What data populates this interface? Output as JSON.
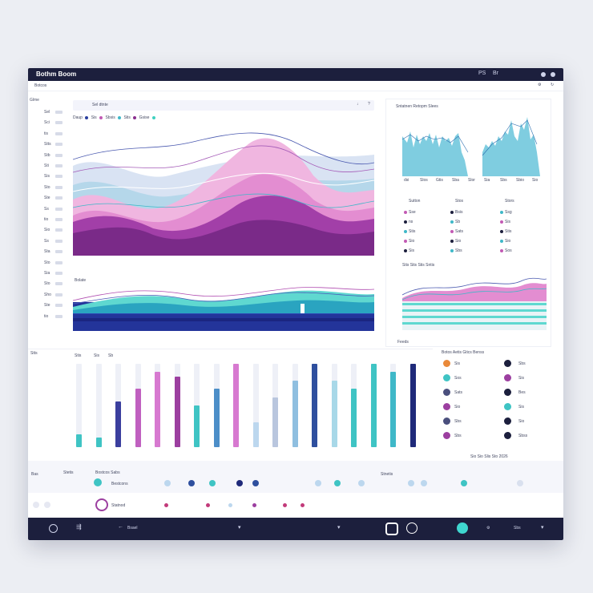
{
  "window": {
    "title": "Bothm Boom",
    "title_right": [
      "PS",
      "Br"
    ]
  },
  "toolbar": {
    "left_label": "Botcos"
  },
  "sidebar": {
    "heading": "Glme",
    "labels": [
      "Sel",
      "Sci",
      "tis",
      "Stts",
      "Stb",
      "Sti",
      "Sis",
      "Sto",
      "Ste",
      "Ss",
      "tio",
      "Sio",
      "Ss",
      "Sta",
      "Sto",
      "Sia",
      "Sto",
      "Sho",
      "Ste",
      "tio"
    ]
  },
  "main_chart": {
    "header": "Sel dtnte",
    "legend": [
      "Daup",
      "Sis",
      "Sbsis",
      "Stis",
      "Gsise"
    ],
    "legend_colors": [
      "#2a3f9e",
      "#c25ab4",
      "#3fb8c8",
      "#8a2e8e",
      "#3fd0c0"
    ]
  },
  "wave_chart": {
    "label": "Bolate"
  },
  "right_panel": {
    "title": "Sntatnen Retopm Slees",
    "histogram_ticks": [
      "dsi",
      "Slos",
      "Gtis",
      "Sba",
      "Slor",
      "Sia",
      "Sbs",
      "Sbio",
      "Sio"
    ],
    "table_headers": [
      "Sutton",
      "Stos",
      "Stors"
    ],
    "table_rows": [
      [
        "Sse",
        "Bsis",
        "Ssg"
      ],
      [
        "ns",
        "Sb",
        "Sis"
      ],
      [
        "Stis",
        "Sats",
        "Stis"
      ],
      [
        "Sio",
        "Sio",
        "Sio"
      ],
      [
        "Sis",
        "Sbs",
        "Sos"
      ]
    ],
    "wave_header": "Stis Stis Stis Sntis",
    "wave_footer": "Feeds"
  },
  "bars_panel": {
    "heading": "Stts",
    "top_labels": [
      "Stis",
      "Sis",
      "Sb"
    ],
    "bars": [
      {
        "name": "bar-1",
        "top": 0.1,
        "fill": 0.15,
        "color": "#3fc4c4"
      },
      {
        "name": "bar-2",
        "top": 0.2,
        "fill": 0.12,
        "color": "#3fc4c4"
      },
      {
        "name": "bar-3",
        "top": 0.4,
        "fill": 0.55,
        "color": "#3b3f9e"
      },
      {
        "name": "bar-4",
        "top": 0.05,
        "fill": 0.7,
        "color": "#c060c0"
      },
      {
        "name": "bar-5",
        "top": 0.05,
        "fill": 0.9,
        "color": "#d779d0"
      },
      {
        "name": "bar-6",
        "top": 0.0,
        "fill": 0.85,
        "color": "#9c3fa0"
      },
      {
        "name": "bar-7",
        "top": 0.0,
        "fill": 0.5,
        "color": "#3fc4c4"
      },
      {
        "name": "bar-8",
        "top": 0.0,
        "fill": 0.7,
        "color": "#4c8ec8"
      },
      {
        "name": "bar-9",
        "top": 0.0,
        "fill": 1.0,
        "color": "#d779d0"
      },
      {
        "name": "bar-10",
        "top": 0.1,
        "fill": 0.3,
        "color": "#bcd7ee"
      },
      {
        "name": "bar-11",
        "top": 0.0,
        "fill": 0.6,
        "color": "#b9c6de"
      },
      {
        "name": "bar-12",
        "top": 0.0,
        "fill": 0.8,
        "color": "#8fbfe0"
      },
      {
        "name": "bar-13",
        "top": 0.0,
        "fill": 1.0,
        "color": "#2e4f9e"
      },
      {
        "name": "bar-14",
        "top": 0.0,
        "fill": 0.8,
        "color": "#a8d8e8"
      },
      {
        "name": "bar-15",
        "top": 0.0,
        "fill": 0.7,
        "color": "#3fc4c4"
      },
      {
        "name": "bar-16",
        "top": 0.0,
        "fill": 1.0,
        "color": "#3fc4c4"
      },
      {
        "name": "bar-17",
        "top": 0.0,
        "fill": 0.9,
        "color": "#3fb8c8"
      },
      {
        "name": "bar-18",
        "top": 0.0,
        "fill": 1.0,
        "color": "#1f2a7a"
      }
    ]
  },
  "legend_panel": {
    "heading": "Botos Aetis Gtics Benss",
    "items": [
      {
        "color": "#e9893a",
        "label": "Sis",
        "right_color": "#1c1f3d",
        "right_label": "Sbs"
      },
      {
        "color": "#3fc4c4",
        "label": "Sos",
        "right_color": "#9c3fa0",
        "right_label": "Sis"
      },
      {
        "color": "#4a4f7d",
        "label": "Sats",
        "right_color": "#1c1f3d",
        "right_label": "Bes"
      },
      {
        "color": "#9c3fa0",
        "label": "Sio",
        "right_color": "#3fc4c4",
        "right_label": "Sis"
      },
      {
        "color": "#4a4f7d",
        "label": "Sbs",
        "right_color": "#1c1f3d",
        "right_label": "Sio"
      },
      {
        "color": "#9c3fa0",
        "label": "Sbs",
        "right_color": "#1c1f3d",
        "right_label": "Sbss"
      }
    ],
    "footer": "Sio Sio Slis Sto 2026"
  },
  "footer_row1": {
    "left": "Bas",
    "label1": "Stetis",
    "label2": "Bostcos Sabs",
    "item_label": "Bestcons",
    "right_label": "Stnetis"
  },
  "footer_row2": {
    "item_label": "Statnod"
  },
  "bottombar": {
    "label": "Bsael",
    "right_label": "Sbs"
  }
}
